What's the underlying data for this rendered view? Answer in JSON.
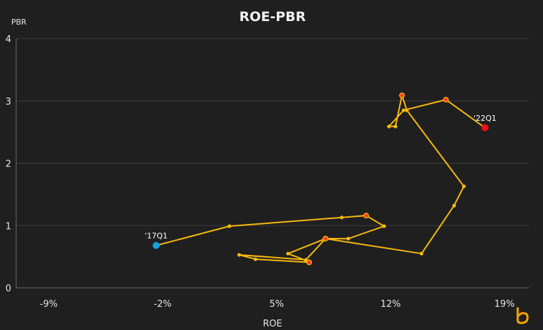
{
  "chart_data": {
    "type": "scatter",
    "title": "ROE-PBR",
    "xlabel": "ROE",
    "ylabel": "PBR",
    "xlim": [
      -11,
      20.5
    ],
    "ylim": [
      0,
      4
    ],
    "x_ticks": [
      "-9%",
      "-2%",
      "5%",
      "12%",
      "19%"
    ],
    "x_tick_values": [
      -9,
      -2,
      5,
      12,
      19
    ],
    "y_ticks": [
      "0",
      "1",
      "2",
      "3",
      "4"
    ],
    "y_tick_values": [
      0,
      1,
      2,
      3,
      4
    ],
    "grid": true,
    "line_color": "#f6b90e",
    "start_color": "#1ba0e2",
    "end_color": "#ee1111",
    "highlight_color": "#ff3a1a",
    "points": [
      {
        "x": -2.4,
        "y": 0.68,
        "label": "'17Q1",
        "kind": "start"
      },
      {
        "x": 2.1,
        "y": 0.99
      },
      {
        "x": 9.0,
        "y": 1.13
      },
      {
        "x": 10.5,
        "y": 1.16,
        "kind": "highlight"
      },
      {
        "x": 11.6,
        "y": 0.99
      },
      {
        "x": 9.4,
        "y": 0.79
      },
      {
        "x": 8.0,
        "y": 0.79,
        "kind": "highlight"
      },
      {
        "x": 5.7,
        "y": 0.55
      },
      {
        "x": 6.8,
        "y": 0.44
      },
      {
        "x": 7.0,
        "y": 0.41,
        "kind": "highlight"
      },
      {
        "x": 3.7,
        "y": 0.46
      },
      {
        "x": 2.7,
        "y": 0.53
      },
      {
        "x": 6.8,
        "y": 0.45
      },
      {
        "x": 8.0,
        "y": 0.79,
        "kind": "highlight"
      },
      {
        "x": 13.9,
        "y": 0.55
      },
      {
        "x": 15.9,
        "y": 1.32
      },
      {
        "x": 16.5,
        "y": 1.63
      },
      {
        "x": 13.0,
        "y": 2.85
      },
      {
        "x": 12.7,
        "y": 3.09,
        "kind": "highlight"
      },
      {
        "x": 12.3,
        "y": 2.59
      },
      {
        "x": 11.9,
        "y": 2.59
      },
      {
        "x": 12.8,
        "y": 2.85
      },
      {
        "x": 15.4,
        "y": 3.02,
        "kind": "highlight"
      },
      {
        "x": 17.8,
        "y": 2.57,
        "label": "'22Q1",
        "kind": "end"
      }
    ]
  },
  "logo_icon": "brand-b-icon"
}
